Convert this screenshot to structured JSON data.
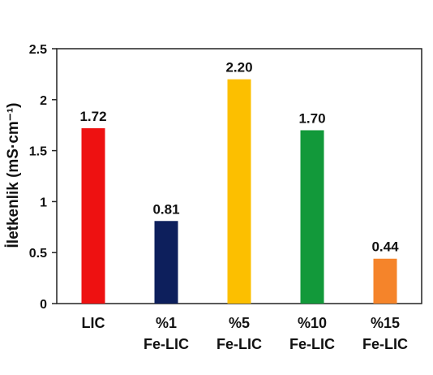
{
  "chart_data": {
    "type": "bar",
    "categories": [
      [
        "LIC"
      ],
      [
        "%1",
        "Fe-LIC"
      ],
      [
        "%5",
        "Fe-LIC"
      ],
      [
        "%10",
        "Fe-LIC"
      ],
      [
        "%15",
        "Fe-LIC"
      ]
    ],
    "values": [
      1.72,
      0.81,
      2.2,
      1.7,
      0.44
    ],
    "value_labels": [
      "1.72",
      "0.81",
      "2.20",
      "1.70",
      "0.44"
    ],
    "colors": [
      "#ee1111",
      "#0d1f5c",
      "#fcbf00",
      "#12993a",
      "#f5842a"
    ],
    "ylabel": "İletkenlik (mS·cm⁻¹)",
    "ylim": [
      0,
      2.5
    ],
    "yticks": [
      0,
      0.5,
      1,
      1.5,
      2,
      2.5
    ],
    "ytick_labels": [
      "0",
      "0.5",
      "1",
      "1.5",
      "2",
      "2.5"
    ],
    "grid": false
  }
}
